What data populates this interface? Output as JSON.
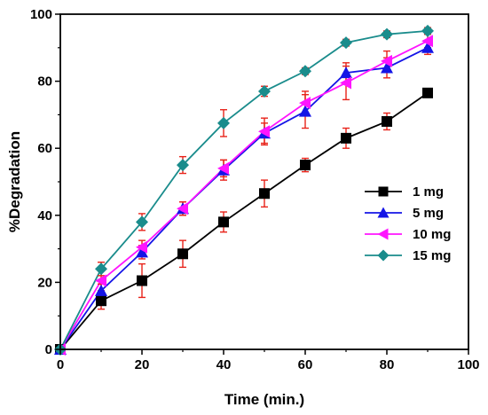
{
  "chart_data": {
    "type": "line",
    "title": "",
    "xlabel": "Time (min.)",
    "ylabel": "%Degradation",
    "xlim": [
      0,
      100
    ],
    "ylim": [
      0,
      100
    ],
    "xticks": [
      0,
      20,
      40,
      60,
      80,
      100
    ],
    "yticks": [
      0,
      20,
      40,
      60,
      80,
      100
    ],
    "grid": false,
    "legend_position": "right",
    "x": [
      0,
      10,
      20,
      30,
      40,
      50,
      60,
      70,
      80,
      90
    ],
    "error_bar_color": "#e8231a",
    "series": [
      {
        "name": "1 mg",
        "color": "#000000",
        "marker": "square",
        "values": [
          0,
          14.5,
          20.5,
          28.5,
          38,
          46.5,
          55,
          63,
          68,
          76.5
        ],
        "errors": [
          0,
          2.5,
          5,
          4,
          3,
          4,
          2,
          3,
          2.5,
          1
        ]
      },
      {
        "name": "5 mg",
        "color": "#1414e6",
        "marker": "triangle-up",
        "values": [
          0,
          17.5,
          29,
          42,
          53.5,
          64.5,
          71,
          82.5,
          84,
          90
        ],
        "errors": [
          0,
          2,
          2,
          2,
          3,
          3,
          5,
          3,
          3,
          2
        ]
      },
      {
        "name": "10 mg",
        "color": "#ff14ff",
        "marker": "triangle-left",
        "values": [
          0,
          20.5,
          30.5,
          42,
          54,
          65,
          73.5,
          79.5,
          86,
          92
        ],
        "errors": [
          0,
          3,
          2,
          2,
          2.5,
          4,
          3.5,
          5,
          3,
          2
        ]
      },
      {
        "name": "15 mg",
        "color": "#1a8c8c",
        "marker": "diamond",
        "values": [
          0,
          24,
          38,
          55,
          67.5,
          77,
          83,
          91.5,
          94,
          95
        ],
        "errors": [
          0,
          2,
          2.5,
          2.5,
          4,
          1.5,
          1,
          1,
          1,
          1
        ]
      }
    ]
  }
}
